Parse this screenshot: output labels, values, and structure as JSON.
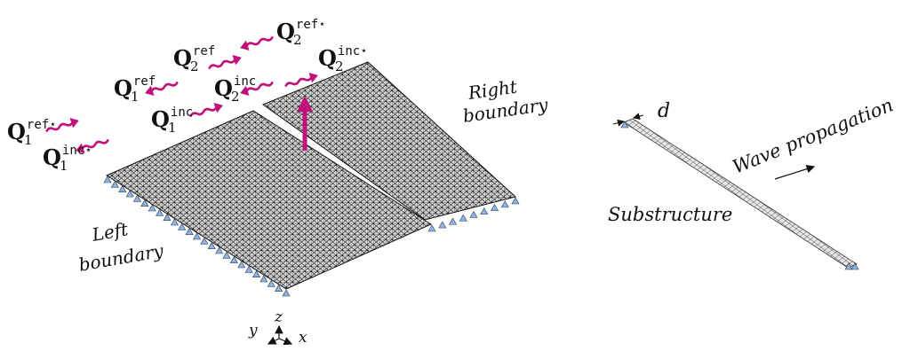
{
  "labels": {
    "right_boundary_line1": "Right",
    "right_boundary_line2": "boundary",
    "left_boundary_line1": "Left",
    "left_boundary_line2": "boundary",
    "wave_propagation": "Wave propagation",
    "substructure": "Substructure",
    "d": "d"
  },
  "axes": {
    "y": "y",
    "z": "z",
    "x": "x"
  },
  "waves": [
    {
      "base": "Q",
      "sub": "1",
      "sup": "ref⋆",
      "direction": "right"
    },
    {
      "base": "Q",
      "sub": "1",
      "sup": "inc⋆",
      "direction": "left"
    },
    {
      "base": "Q",
      "sub": "1",
      "sup": "ref",
      "direction": "left"
    },
    {
      "base": "Q",
      "sub": "1",
      "sup": "inc",
      "direction": "right"
    },
    {
      "base": "Q",
      "sub": "2",
      "sup": "ref",
      "direction": "right"
    },
    {
      "base": "Q",
      "sub": "2",
      "sup": "inc",
      "direction": "left"
    },
    {
      "base": "Q",
      "sub": "2",
      "sup": "ref⋆",
      "direction": "left"
    },
    {
      "base": "Q",
      "sub": "2",
      "sup": "inc⋆",
      "direction": "right"
    }
  ],
  "colors": {
    "wave": "#c0127a",
    "support": "#8fb4e0",
    "mesh": "#1a1a1a",
    "force": "#c0127a"
  }
}
